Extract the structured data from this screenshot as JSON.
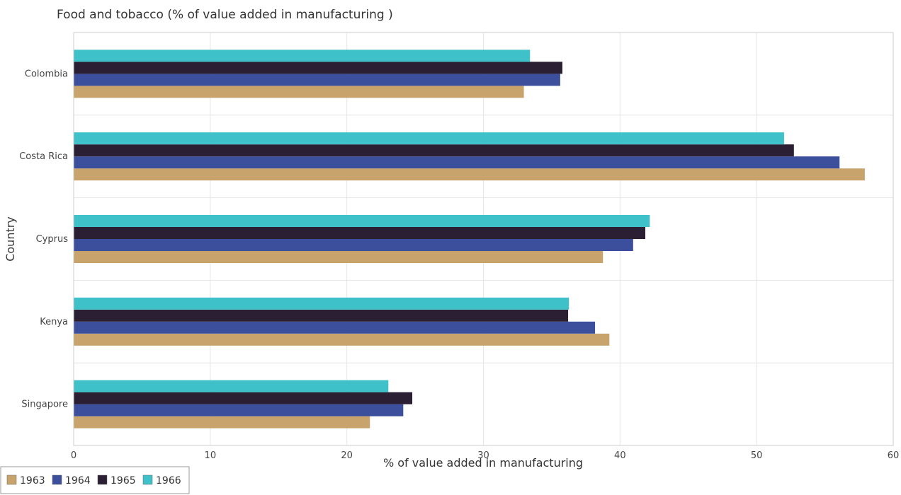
{
  "chart_data": {
    "type": "bar",
    "orientation": "horizontal",
    "title": "Food and tobacco (% of value added in manufacturing )",
    "xlabel": "% of value added in manufacturing",
    "ylabel": "Country",
    "xlim": [
      0,
      60
    ],
    "xticks": [
      0,
      10,
      20,
      30,
      40,
      50,
      60
    ],
    "grid": true,
    "legend_position": "bottom-left",
    "categories": [
      "Colombia",
      "Costa Rica",
      "Cyprus",
      "Kenya",
      "Singapore"
    ],
    "series": [
      {
        "name": "1963",
        "color": "#c9a36c",
        "values": [
          32.96,
          57.92,
          38.75,
          39.22,
          21.69
        ]
      },
      {
        "name": "1964",
        "color": "#3b4f9c",
        "values": [
          35.62,
          56.07,
          40.96,
          38.17,
          24.13
        ]
      },
      {
        "name": "1965",
        "color": "#2a1f33",
        "values": [
          35.78,
          52.73,
          41.85,
          36.2,
          24.79
        ]
      },
      {
        "name": "1966",
        "color": "#3fc1c9",
        "values": [
          33.41,
          52.01,
          42.18,
          36.26,
          23.04
        ]
      }
    ]
  }
}
